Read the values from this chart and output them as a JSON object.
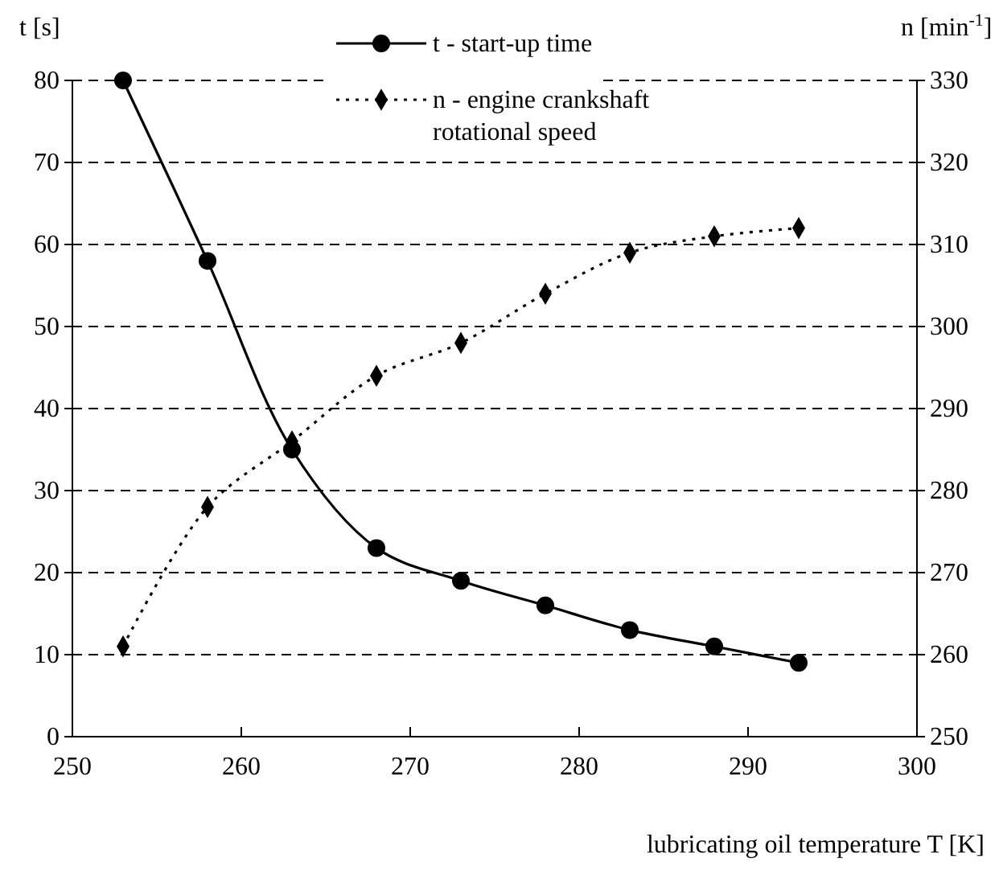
{
  "chart_data": {
    "type": "line",
    "xlabel": "lubricating oil temperature  T [K]",
    "ylabel": "t [s]",
    "y2label": "n [min$^{-1}$]",
    "x": [
      253,
      258,
      263,
      268,
      273,
      278,
      283,
      288,
      293
    ],
    "series": [
      {
        "name": "t - start-up time",
        "color": "#000000",
        "values": [
          80,
          58,
          35,
          23,
          19,
          16,
          13,
          11,
          9
        ],
        "marker": "circle",
        "line_style": "solid"
      },
      {
        "name": "n - engine crankshaft rotational speed",
        "color": "#000000",
        "values": [
          261,
          278,
          286,
          294,
          298,
          304,
          309,
          311,
          312
        ],
        "marker": "diamond",
        "line_style": "dotted",
        "axis": "y2"
      }
    ],
    "xlim": [
      250,
      300
    ],
    "xticks": [
      250,
      260,
      270,
      280,
      290,
      300
    ],
    "ylim": [
      0,
      80
    ],
    "yticks": [
      0,
      10,
      20,
      30,
      40,
      50,
      60,
      70,
      80
    ],
    "y2lim": [
      250,
      330
    ],
    "y2ticks": [
      250,
      260,
      270,
      280,
      290,
      300,
      310,
      320,
      330
    ],
    "grid": "y",
    "legend": "top"
  }
}
